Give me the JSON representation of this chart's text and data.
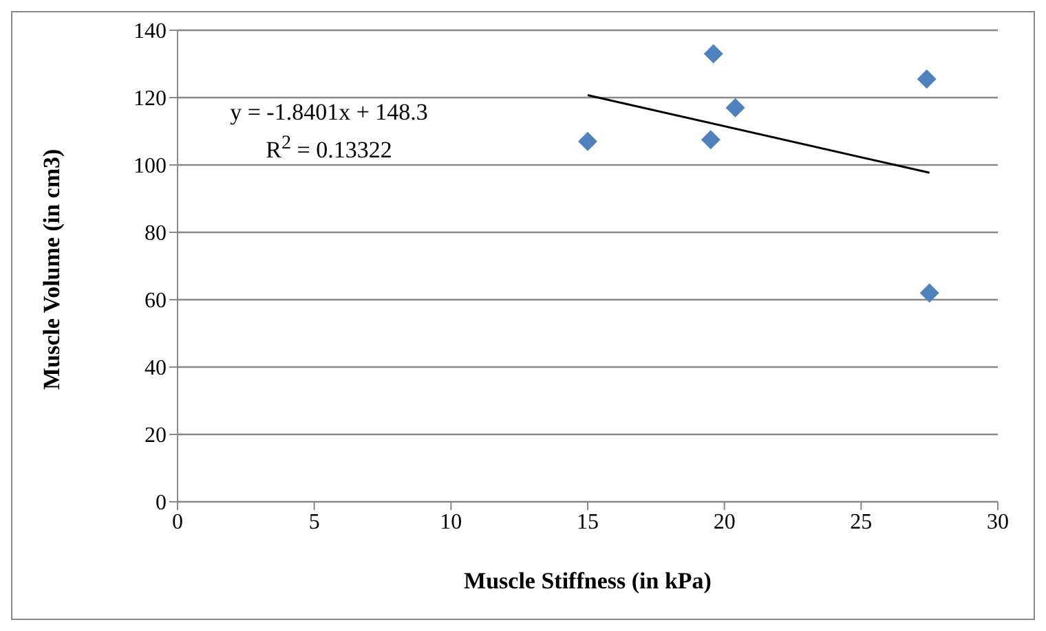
{
  "chart_data": {
    "type": "scatter",
    "xlabel": "Muscle Stiffness (in kPa)",
    "ylabel": "Muscle Volume (in cm3)",
    "xlim": [
      0,
      30
    ],
    "xticks": [
      0,
      5,
      10,
      15,
      20,
      25,
      30
    ],
    "ylim": [
      0,
      140
    ],
    "yticks": [
      0,
      20,
      40,
      60,
      80,
      100,
      120,
      140
    ],
    "grid": "y",
    "marker": "diamond",
    "series": [
      {
        "color": "#4f81bd",
        "x": [
          15.0,
          19.5,
          19.6,
          20.4,
          27.4,
          27.5
        ],
        "values": [
          107,
          107.5,
          133,
          117,
          125.5,
          62
        ]
      },
      {
        "type": "line",
        "color": "#000000",
        "x": [
          15,
          27.5
        ],
        "values": [
          120.7,
          97.7
        ],
        "marker": "none"
      }
    ],
    "annotations": [
      "y = -1.8401x + 148.3",
      "R$^{2}$ = 0.13322"
    ]
  }
}
